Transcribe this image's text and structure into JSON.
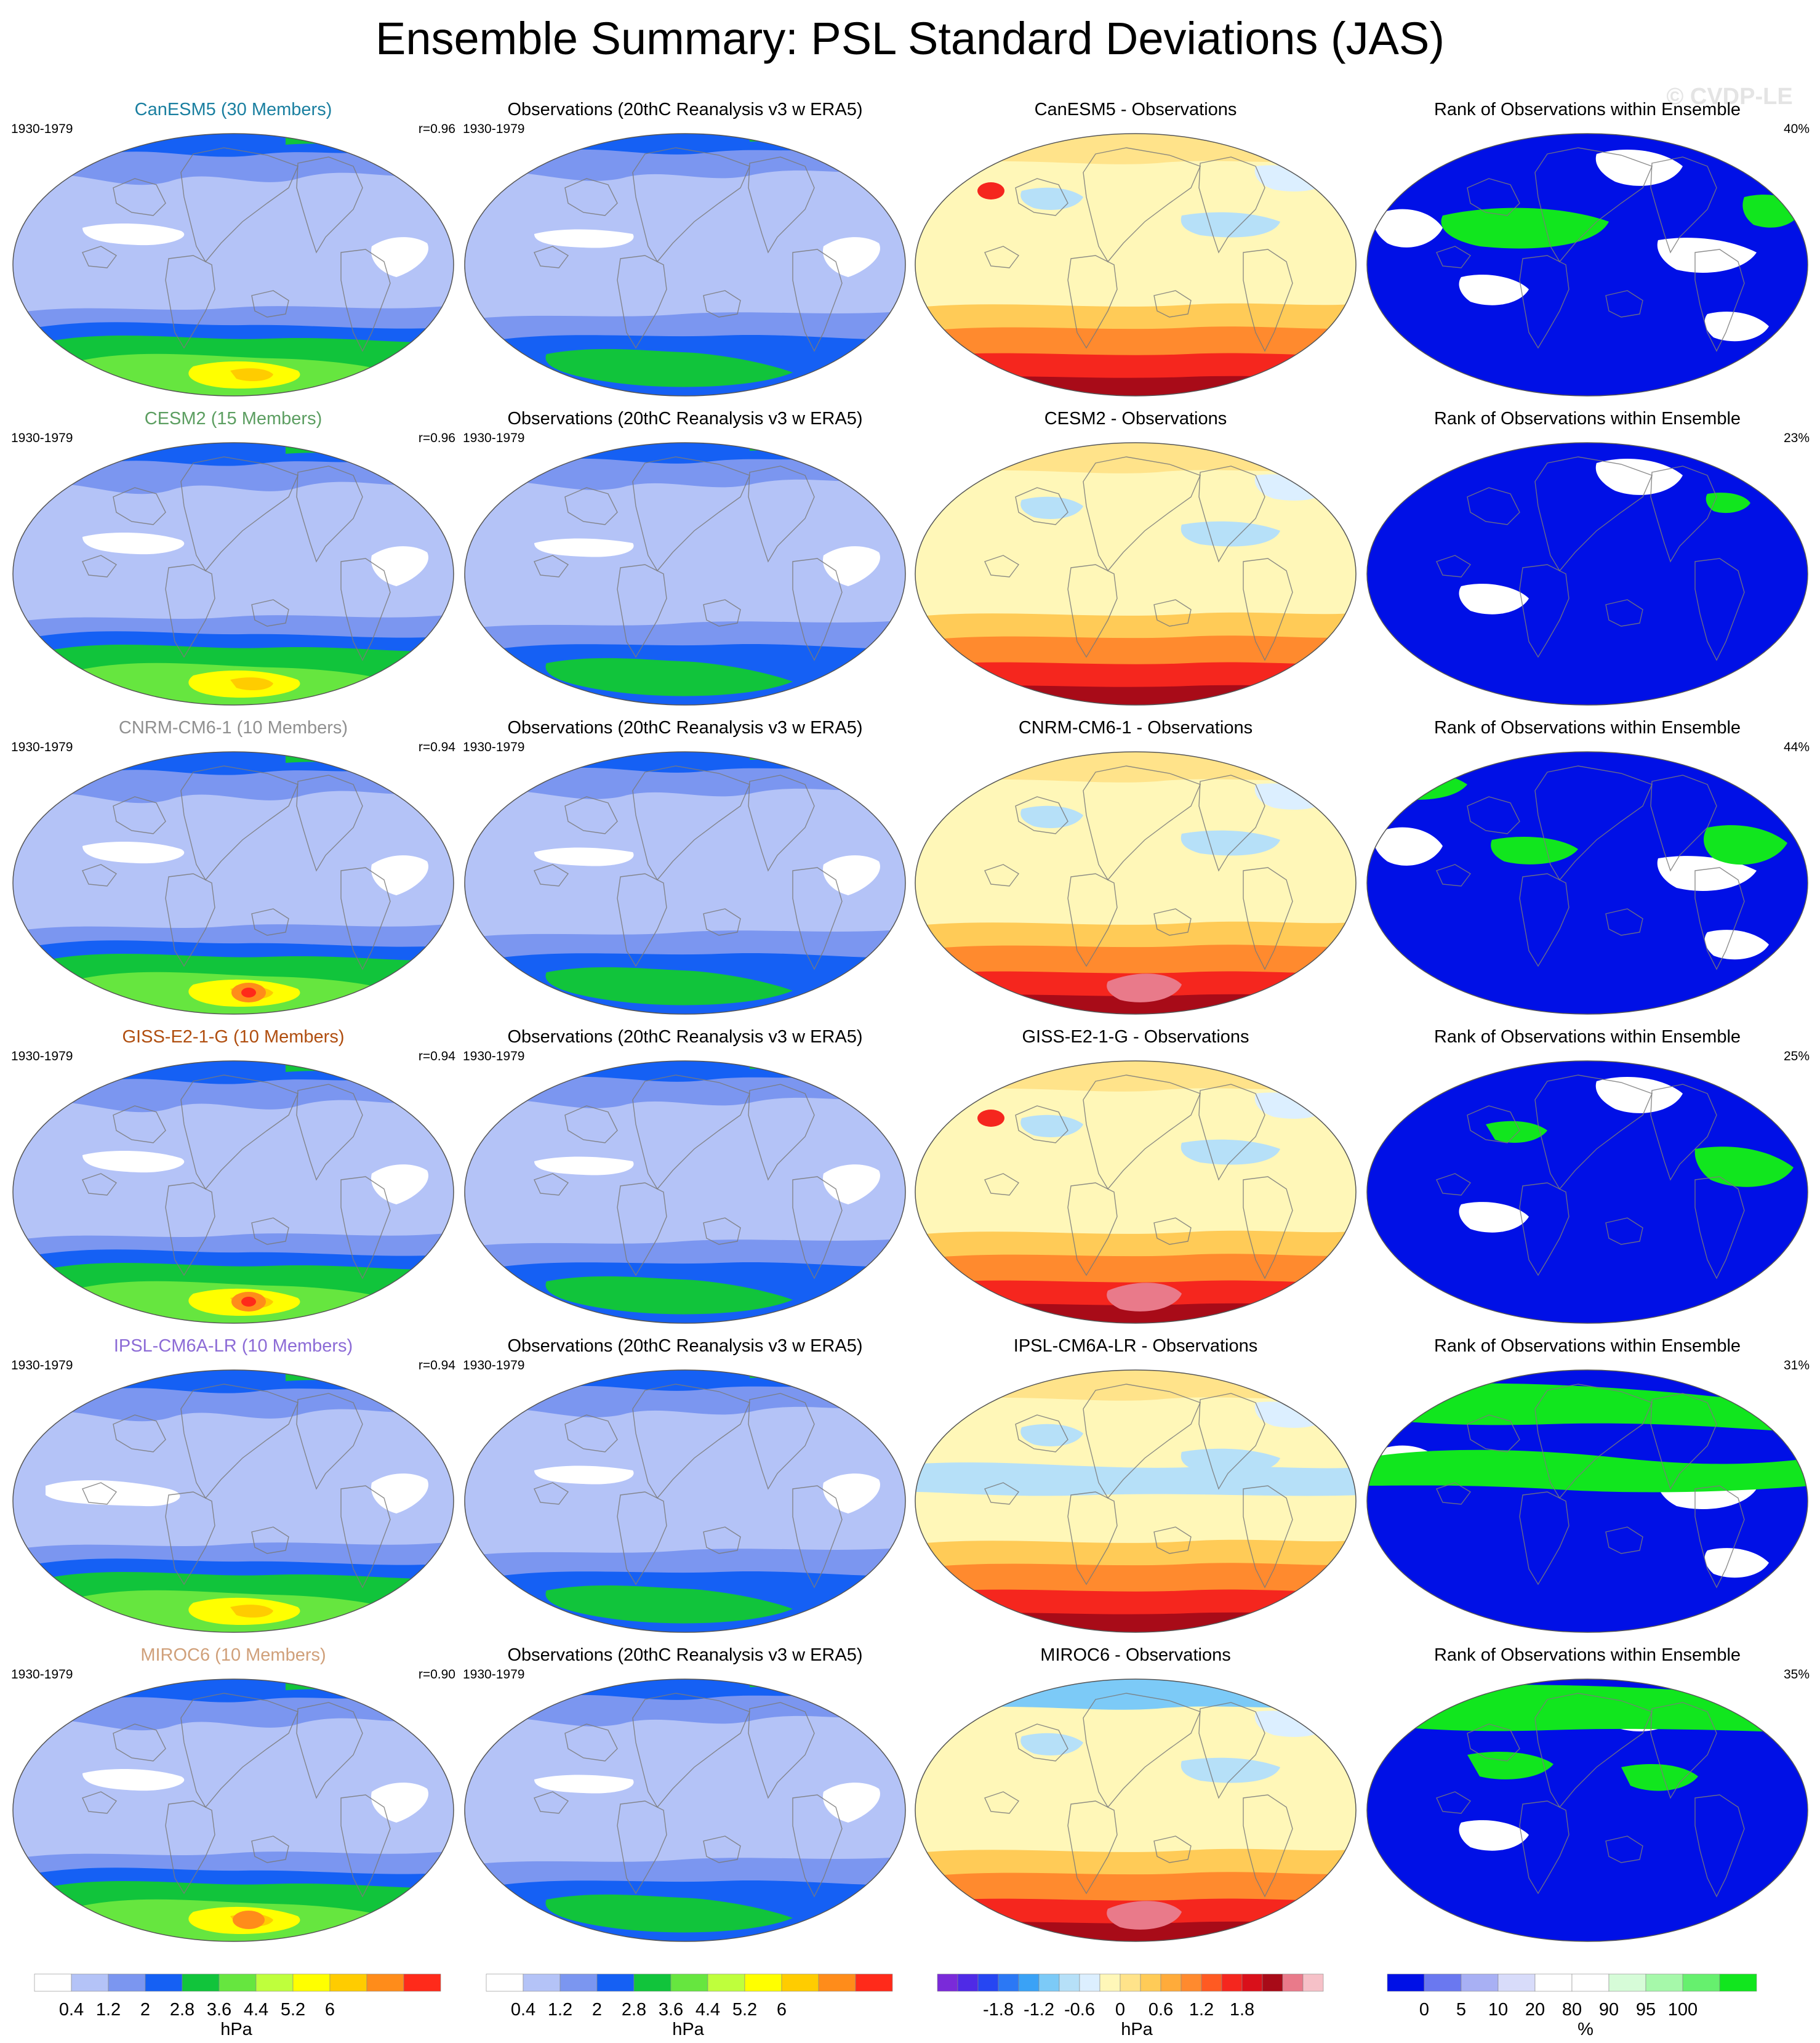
{
  "title": "Ensemble Summary: PSL Standard Deviations (JAS)",
  "watermark": "© CVDP-LE",
  "colors": {
    "model_names": [
      "#1a7fa0",
      "#5c9e61",
      "#909090",
      "#b04e0f",
      "#8c6bd6",
      "#d0a07a"
    ],
    "std_scale": [
      "#ffffff",
      "#b4c3f7",
      "#7b96f0",
      "#1560f4",
      "#11c43b",
      "#66e63f",
      "#bfff3c",
      "#ffff00",
      "#ffcc00",
      "#ff8c1a",
      "#ff2a1a"
    ],
    "diff_scale": [
      "#7a2ad9",
      "#4f2ae6",
      "#2646f2",
      "#2b78f5",
      "#3aa2f6",
      "#7ccaf7",
      "#b6e0f8",
      "#dcefff",
      "#fff7b8",
      "#ffe38a",
      "#ffcb57",
      "#ffab3a",
      "#ff8a2e",
      "#ff5a22",
      "#f5261e",
      "#d9101a",
      "#a80b18",
      "#e97a8a",
      "#f6c1c8"
    ],
    "rank_scale": [
      "#0010e6",
      "#6a78f0",
      "#a8b0f4",
      "#d8dcfa",
      "#ffffff",
      "#ffffff",
      "#d6fcd8",
      "#a6f8aa",
      "#66f06e",
      "#11e61e"
    ]
  },
  "rows": [
    {
      "model_title": "CanESM5 (30 Members)",
      "period": "1930-1979",
      "r_value": "r=0.96",
      "obs_title": "Observations (20thC Reanalysis v3 w ERA5)",
      "obs_period": "1930-1979",
      "diff_title": "CanESM5 - Observations",
      "rank_title": "Rank of Observations within Ensemble",
      "rank_pct": "40%"
    },
    {
      "model_title": "CESM2 (15 Members)",
      "period": "1930-1979",
      "r_value": "r=0.96",
      "obs_title": "Observations (20thC Reanalysis v3 w ERA5)",
      "obs_period": "1930-1979",
      "diff_title": "CESM2 - Observations",
      "rank_title": "Rank of Observations within Ensemble",
      "rank_pct": "23%"
    },
    {
      "model_title": "CNRM-CM6-1 (10 Members)",
      "period": "1930-1979",
      "r_value": "r=0.94",
      "obs_title": "Observations (20thC Reanalysis v3 w ERA5)",
      "obs_period": "1930-1979",
      "diff_title": "CNRM-CM6-1 - Observations",
      "rank_title": "Rank of Observations within Ensemble",
      "rank_pct": "44%"
    },
    {
      "model_title": "GISS-E2-1-G (10 Members)",
      "period": "1930-1979",
      "r_value": "r=0.94",
      "obs_title": "Observations (20thC Reanalysis v3 w ERA5)",
      "obs_period": "1930-1979",
      "diff_title": "GISS-E2-1-G - Observations",
      "rank_title": "Rank of Observations within Ensemble",
      "rank_pct": "25%"
    },
    {
      "model_title": "IPSL-CM6A-LR (10 Members)",
      "period": "1930-1979",
      "r_value": "r=0.94",
      "obs_title": "Observations (20thC Reanalysis v3 w ERA5)",
      "obs_period": "1930-1979",
      "diff_title": "IPSL-CM6A-LR - Observations",
      "rank_title": "Rank of Observations within Ensemble",
      "rank_pct": "31%"
    },
    {
      "model_title": "MIROC6 (10 Members)",
      "period": "1930-1979",
      "r_value": "r=0.90",
      "obs_title": "Observations (20thC Reanalysis v3 w ERA5)",
      "obs_period": "1930-1979",
      "diff_title": "MIROC6 - Observations",
      "rank_title": "Rank of Observations within Ensemble",
      "rank_pct": "35%"
    }
  ],
  "colorbars": {
    "std": {
      "ticks": [
        "0.4",
        "1.2",
        "2",
        "2.8",
        "3.6",
        "4.4",
        "5.2",
        "6"
      ],
      "unit": "hPa"
    },
    "obs": {
      "ticks": [
        "0.4",
        "1.2",
        "2",
        "2.8",
        "3.6",
        "4.4",
        "5.2",
        "6"
      ],
      "unit": "hPa"
    },
    "diff": {
      "ticks": [
        "-1.8",
        "-1.2",
        "-0.6",
        "0",
        "0.6",
        "1.2",
        "1.8"
      ],
      "unit": "hPa"
    },
    "rank": {
      "ticks": [
        "0",
        "5",
        "10",
        "20",
        "80",
        "90",
        "95",
        "100"
      ],
      "unit": "%"
    }
  }
}
